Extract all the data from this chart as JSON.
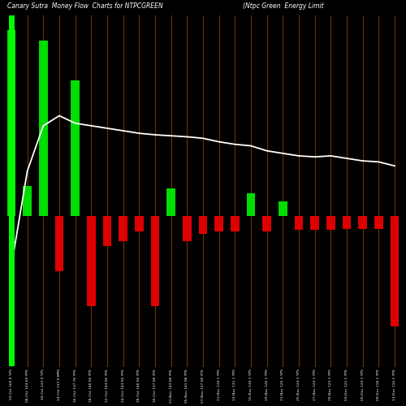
{
  "title_left": "Canary Sutra  Money Flow  Charts for NTPCGREEN",
  "title_right": "(Ntpc Green  Energy Limit",
  "background_color": "#000000",
  "categories": [
    "03-Oct 160.0 YPS",
    "08-Oct 144.69 YPS",
    "10-Oct 122.0 YPS",
    "14-Oct 137.9 MPS",
    "16-Oct 137.76 YPS",
    "18-Oct 146.06 YPS",
    "22-Oct 144.06 YPS",
    "24-Oct 143.06 YPS",
    "28-Oct 146.06 YPS",
    "30-Oct 137.08 YPS",
    "01-Nov 143.08 YPS",
    "05-Nov 141.08 YPS",
    "07-Nov 137.08 YPS",
    "11-Nov 134.1 YPS",
    "13-Nov 131.1 YPS",
    "15-Nov 130.1 YPS",
    "19-Nov 126.1 YPS",
    "21-Nov 125.1 YPS",
    "25-Nov 124.1 YPS",
    "27-Nov 124.1 YPS",
    "29-Nov 123.1 YPS",
    "03-Dec 122.1 YPS",
    "05-Dec 120.1 YPS",
    "09-Dec 118.1 YPS",
    "11-Dec 116.1 YPS"
  ],
  "bar_colors": [
    "green",
    "green",
    "green",
    "red",
    "green",
    "red",
    "red",
    "red",
    "red",
    "red",
    "green",
    "red",
    "red",
    "red",
    "red",
    "green",
    "red",
    "green",
    "red",
    "red",
    "red",
    "red",
    "red",
    "red",
    "red"
  ],
  "bar_heights": [
    370,
    60,
    350,
    -110,
    270,
    -180,
    -60,
    -50,
    -30,
    -180,
    55,
    -50,
    -35,
    -30,
    -30,
    45,
    -30,
    30,
    -28,
    -28,
    -28,
    -25,
    -25,
    -25,
    -220
  ],
  "line_values": [
    -100,
    90,
    180,
    200,
    185,
    180,
    175,
    170,
    165,
    162,
    160,
    158,
    155,
    148,
    143,
    140,
    130,
    125,
    120,
    118,
    120,
    115,
    110,
    108,
    100
  ],
  "ylim": [
    -300,
    400
  ],
  "figsize": [
    5.0,
    5.0
  ],
  "dpi": 100
}
